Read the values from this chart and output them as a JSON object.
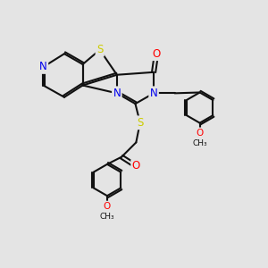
{
  "bg_color": "#e4e4e4",
  "atom_colors": {
    "N": "#0000ee",
    "S": "#cccc00",
    "O": "#ff0000",
    "C": "#111111"
  },
  "bond_color": "#111111",
  "bond_width": 1.5,
  "font_size_atom": 8.5
}
